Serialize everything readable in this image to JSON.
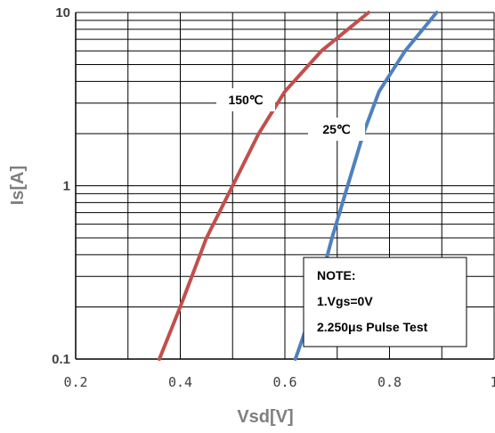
{
  "chart_data": {
    "type": "line",
    "xlabel": "Vsd[V]",
    "ylabel": "Is[A]",
    "xlim": [
      0.2,
      1.0
    ],
    "ylim": [
      0.1,
      10
    ],
    "yscale": "log",
    "x_ticks": [
      "0.2",
      "0.4",
      "0.6",
      "0.8",
      "1"
    ],
    "y_ticks": [
      "0.1",
      "1",
      "10"
    ],
    "grid": true,
    "series": [
      {
        "name": "150℃",
        "color": "#c0504d",
        "points": [
          [
            0.36,
            0.1
          ],
          [
            0.4,
            0.2
          ],
          [
            0.45,
            0.5
          ],
          [
            0.5,
            1.0
          ],
          [
            0.55,
            2.0
          ],
          [
            0.6,
            3.5
          ],
          [
            0.67,
            6.0
          ],
          [
            0.76,
            10.0
          ]
        ]
      },
      {
        "name": "25℃",
        "color": "#4f81bd",
        "points": [
          [
            0.62,
            0.1
          ],
          [
            0.655,
            0.2
          ],
          [
            0.69,
            0.5
          ],
          [
            0.72,
            1.0
          ],
          [
            0.75,
            2.0
          ],
          [
            0.78,
            3.5
          ],
          [
            0.83,
            6.0
          ],
          [
            0.89,
            10.0
          ]
        ]
      }
    ]
  },
  "note": {
    "title": "NOTE:",
    "lines": [
      "1.Vgs=0V",
      "2.250μs Pulse Test"
    ]
  }
}
